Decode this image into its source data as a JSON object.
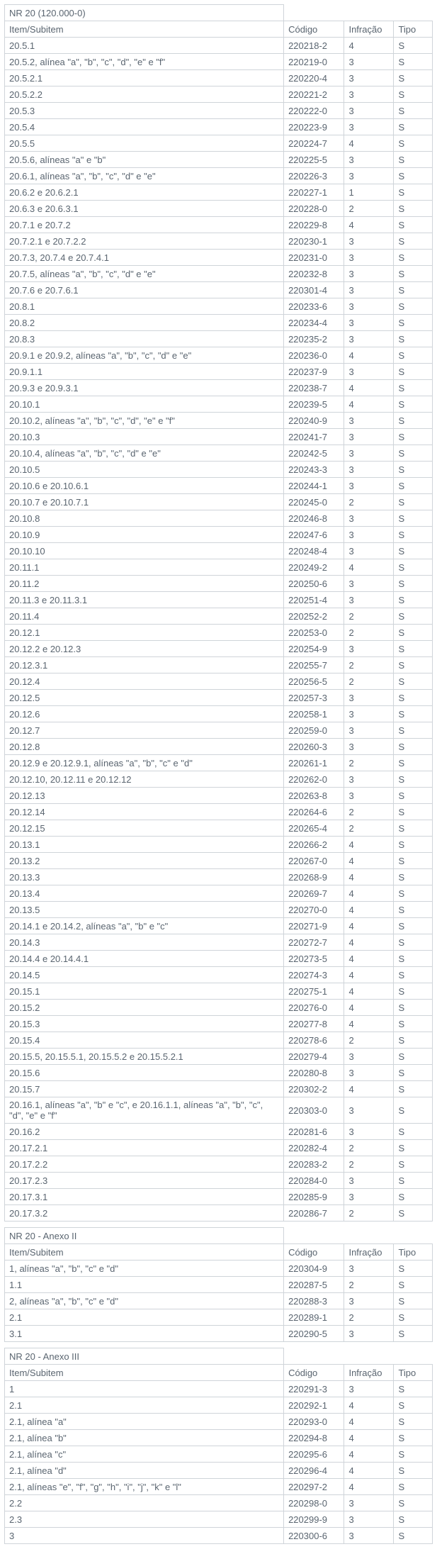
{
  "tables": [
    {
      "title": "NR 20 (120.000-0)",
      "headers": {
        "item": "Item/Subitem",
        "codigo": "Código",
        "infracao": "Infração",
        "tipo": "Tipo"
      },
      "rows": [
        {
          "item": "20.5.1",
          "codigo": "220218-2",
          "infracao": "4",
          "tipo": "S"
        },
        {
          "item": "20.5.2, alínea \"a\", \"b\", \"c\", \"d\", \"e\" e \"f\"",
          "codigo": "220219-0",
          "infracao": "3",
          "tipo": "S"
        },
        {
          "item": "20.5.2.1",
          "codigo": "220220-4",
          "infracao": "3",
          "tipo": "S"
        },
        {
          "item": "20.5.2.2",
          "codigo": "220221-2",
          "infracao": "3",
          "tipo": "S"
        },
        {
          "item": "20.5.3",
          "codigo": "220222-0",
          "infracao": "3",
          "tipo": "S"
        },
        {
          "item": "20.5.4",
          "codigo": "220223-9",
          "infracao": "3",
          "tipo": "S"
        },
        {
          "item": "20.5.5",
          "codigo": "220224-7",
          "infracao": "4",
          "tipo": "S"
        },
        {
          "item": "20.5.6, alíneas \"a\" e \"b\"",
          "codigo": "220225-5",
          "infracao": "3",
          "tipo": "S"
        },
        {
          "item": "20.6.1, alíneas \"a\", \"b\", \"c\", \"d\" e \"e\"",
          "codigo": "220226-3",
          "infracao": "3",
          "tipo": "S"
        },
        {
          "item": "20.6.2 e 20.6.2.1",
          "codigo": "220227-1",
          "infracao": "1",
          "tipo": "S"
        },
        {
          "item": "20.6.3 e 20.6.3.1",
          "codigo": "220228-0",
          "infracao": "2",
          "tipo": "S"
        },
        {
          "item": "20.7.1 e 20.7.2",
          "codigo": "220229-8",
          "infracao": "4",
          "tipo": "S"
        },
        {
          "item": "20.7.2.1 e 20.7.2.2",
          "codigo": "220230-1",
          "infracao": "3",
          "tipo": "S"
        },
        {
          "item": "20.7.3, 20.7.4 e 20.7.4.1",
          "codigo": "220231-0",
          "infracao": "3",
          "tipo": "S"
        },
        {
          "item": "20.7.5, alíneas \"a\", \"b\", \"c\", \"d\" e \"e\"",
          "codigo": "220232-8",
          "infracao": "3",
          "tipo": "S"
        },
        {
          "item": "20.7.6 e 20.7.6.1",
          "codigo": "220301-4",
          "infracao": "3",
          "tipo": "S"
        },
        {
          "item": "20.8.1",
          "codigo": "220233-6",
          "infracao": "3",
          "tipo": "S"
        },
        {
          "item": "20.8.2",
          "codigo": "220234-4",
          "infracao": "3",
          "tipo": "S"
        },
        {
          "item": "20.8.3",
          "codigo": "220235-2",
          "infracao": "3",
          "tipo": "S"
        },
        {
          "item": "20.9.1 e 20.9.2, alíneas \"a\", \"b\", \"c\", \"d\" e \"e\"",
          "codigo": "220236-0",
          "infracao": "4",
          "tipo": "S"
        },
        {
          "item": "20.9.1.1",
          "codigo": "220237-9",
          "infracao": "3",
          "tipo": "S"
        },
        {
          "item": "20.9.3 e 20.9.3.1",
          "codigo": "220238-7",
          "infracao": "4",
          "tipo": "S"
        },
        {
          "item": "20.10.1",
          "codigo": "220239-5",
          "infracao": "4",
          "tipo": "S"
        },
        {
          "item": "20.10.2, alíneas \"a\", \"b\", \"c\", \"d\", \"e\" e \"f\"",
          "codigo": "220240-9",
          "infracao": "3",
          "tipo": "S"
        },
        {
          "item": "20.10.3",
          "codigo": "220241-7",
          "infracao": "3",
          "tipo": "S"
        },
        {
          "item": "20.10.4, alíneas \"a\", \"b\", \"c\", \"d\" e \"e\"",
          "codigo": "220242-5",
          "infracao": "3",
          "tipo": "S"
        },
        {
          "item": "20.10.5",
          "codigo": "220243-3",
          "infracao": "3",
          "tipo": "S"
        },
        {
          "item": "20.10.6 e 20.10.6.1",
          "codigo": "220244-1",
          "infracao": "3",
          "tipo": "S"
        },
        {
          "item": "20.10.7 e 20.10.7.1",
          "codigo": "220245-0",
          "infracao": "2",
          "tipo": "S"
        },
        {
          "item": "20.10.8",
          "codigo": "220246-8",
          "infracao": "3",
          "tipo": "S"
        },
        {
          "item": "20.10.9",
          "codigo": "220247-6",
          "infracao": "3",
          "tipo": "S"
        },
        {
          "item": "20.10.10",
          "codigo": "220248-4",
          "infracao": "3",
          "tipo": "S"
        },
        {
          "item": "20.11.1",
          "codigo": "220249-2",
          "infracao": "4",
          "tipo": "S"
        },
        {
          "item": "20.11.2",
          "codigo": "220250-6",
          "infracao": "3",
          "tipo": "S"
        },
        {
          "item": "20.11.3 e 20.11.3.1",
          "codigo": "220251-4",
          "infracao": "3",
          "tipo": "S"
        },
        {
          "item": "20.11.4",
          "codigo": "220252-2",
          "infracao": "2",
          "tipo": "S"
        },
        {
          "item": "20.12.1",
          "codigo": "220253-0",
          "infracao": "2",
          "tipo": "S"
        },
        {
          "item": "20.12.2 e 20.12.3",
          "codigo": "220254-9",
          "infracao": "3",
          "tipo": "S"
        },
        {
          "item": "20.12.3.1",
          "codigo": "220255-7",
          "infracao": "2",
          "tipo": "S"
        },
        {
          "item": "20.12.4",
          "codigo": "220256-5",
          "infracao": "2",
          "tipo": "S"
        },
        {
          "item": "20.12.5",
          "codigo": "220257-3",
          "infracao": "3",
          "tipo": "S"
        },
        {
          "item": "20.12.6",
          "codigo": "220258-1",
          "infracao": "3",
          "tipo": "S"
        },
        {
          "item": "20.12.7",
          "codigo": "220259-0",
          "infracao": "3",
          "tipo": "S"
        },
        {
          "item": "20.12.8",
          "codigo": "220260-3",
          "infracao": "3",
          "tipo": "S"
        },
        {
          "item": "20.12.9 e 20.12.9.1, alíneas \"a\", \"b\", \"c\" e \"d\"",
          "codigo": "220261-1",
          "infracao": "2",
          "tipo": "S"
        },
        {
          "item": "20.12.10, 20.12.11 e 20.12.12",
          "codigo": "220262-0",
          "infracao": "3",
          "tipo": "S"
        },
        {
          "item": "20.12.13",
          "codigo": "220263-8",
          "infracao": "3",
          "tipo": "S"
        },
        {
          "item": "20.12.14",
          "codigo": "220264-6",
          "infracao": "2",
          "tipo": "S"
        },
        {
          "item": "20.12.15",
          "codigo": "220265-4",
          "infracao": "2",
          "tipo": "S"
        },
        {
          "item": "20.13.1",
          "codigo": "220266-2",
          "infracao": "4",
          "tipo": "S"
        },
        {
          "item": "20.13.2",
          "codigo": "220267-0",
          "infracao": "4",
          "tipo": "S"
        },
        {
          "item": "20.13.3",
          "codigo": "220268-9",
          "infracao": "4",
          "tipo": "S"
        },
        {
          "item": "20.13.4",
          "codigo": "220269-7",
          "infracao": "4",
          "tipo": "S"
        },
        {
          "item": "20.13.5",
          "codigo": "220270-0",
          "infracao": "4",
          "tipo": "S"
        },
        {
          "item": "20.14.1 e 20.14.2, alíneas \"a\", \"b\" e \"c\"",
          "codigo": "220271-9",
          "infracao": "4",
          "tipo": "S"
        },
        {
          "item": "20.14.3",
          "codigo": "220272-7",
          "infracao": "4",
          "tipo": "S"
        },
        {
          "item": "20.14.4 e 20.14.4.1",
          "codigo": "220273-5",
          "infracao": "4",
          "tipo": "S"
        },
        {
          "item": "20.14.5",
          "codigo": "220274-3",
          "infracao": "4",
          "tipo": "S"
        },
        {
          "item": "20.15.1",
          "codigo": "220275-1",
          "infracao": "4",
          "tipo": "S"
        },
        {
          "item": "20.15.2",
          "codigo": "220276-0",
          "infracao": "4",
          "tipo": "S"
        },
        {
          "item": "20.15.3",
          "codigo": "220277-8",
          "infracao": "4",
          "tipo": "S"
        },
        {
          "item": "20.15.4",
          "codigo": "220278-6",
          "infracao": "2",
          "tipo": "S"
        },
        {
          "item": "20.15.5, 20.15.5.1, 20.15.5.2 e 20.15.5.2.1",
          "codigo": "220279-4",
          "infracao": "3",
          "tipo": "S"
        },
        {
          "item": "20.15.6",
          "codigo": "220280-8",
          "infracao": "3",
          "tipo": "S"
        },
        {
          "item": "20.15.7",
          "codigo": "220302-2",
          "infracao": "4",
          "tipo": "S"
        },
        {
          "item": "20.16.1, alíneas \"a\", \"b\" e \"c\", e 20.16.1.1, alíneas \"a\", \"b\", \"c\", \"d\", \"e\" e \"f\"",
          "codigo": "220303-0",
          "infracao": "3",
          "tipo": "S"
        },
        {
          "item": "20.16.2",
          "codigo": "220281-6",
          "infracao": "3",
          "tipo": "S"
        },
        {
          "item": "20.17.2.1",
          "codigo": "220282-4",
          "infracao": "2",
          "tipo": "S"
        },
        {
          "item": "20.17.2.2",
          "codigo": "220283-2",
          "infracao": "2",
          "tipo": "S"
        },
        {
          "item": "20.17.2.3",
          "codigo": "220284-0",
          "infracao": "3",
          "tipo": "S"
        },
        {
          "item": "20.17.3.1",
          "codigo": "220285-9",
          "infracao": "3",
          "tipo": "S"
        },
        {
          "item": "20.17.3.2",
          "codigo": "220286-7",
          "infracao": "2",
          "tipo": "S"
        }
      ]
    },
    {
      "title": "NR 20 - Anexo II",
      "headers": {
        "item": "Item/Subitem",
        "codigo": "Código",
        "infracao": "Infração",
        "tipo": "Tipo"
      },
      "rows": [
        {
          "item": "1, alíneas \"a\", \"b\", \"c\" e \"d\"",
          "codigo": "220304-9",
          "infracao": "3",
          "tipo": "S"
        },
        {
          "item": "1.1",
          "codigo": "220287-5",
          "infracao": "2",
          "tipo": "S"
        },
        {
          "item": "2, alíneas \"a\", \"b\", \"c\" e \"d\"",
          "codigo": "220288-3",
          "infracao": "3",
          "tipo": "S"
        },
        {
          "item": "2.1",
          "codigo": "220289-1",
          "infracao": "2",
          "tipo": "S"
        },
        {
          "item": "3.1",
          "codigo": "220290-5",
          "infracao": "3",
          "tipo": "S"
        }
      ]
    },
    {
      "title": "NR 20 - Anexo III",
      "headers": {
        "item": "Item/Subitem",
        "codigo": "Código",
        "infracao": "Infração",
        "tipo": "Tipo"
      },
      "rows": [
        {
          "item": "1",
          "codigo": "220291-3",
          "infracao": "3",
          "tipo": "S"
        },
        {
          "item": "2.1",
          "codigo": "220292-1",
          "infracao": "4",
          "tipo": "S"
        },
        {
          "item": "2.1, alínea \"a\"",
          "codigo": "220293-0",
          "infracao": "4",
          "tipo": "S"
        },
        {
          "item": "2.1, alínea \"b\"",
          "codigo": "220294-8",
          "infracao": "4",
          "tipo": "S"
        },
        {
          "item": "2.1, alínea \"c\"",
          "codigo": "220295-6",
          "infracao": "4",
          "tipo": "S"
        },
        {
          "item": "2.1, alínea \"d\"",
          "codigo": "220296-4",
          "infracao": "4",
          "tipo": "S"
        },
        {
          "item": "2.1, alíneas \"e\", \"f\", \"g\", \"h\", \"i\", \"j\", \"k\" e \"l\"",
          "codigo": "220297-2",
          "infracao": "4",
          "tipo": "S"
        },
        {
          "item": "2.2",
          "codigo": "220298-0",
          "infracao": "3",
          "tipo": "S"
        },
        {
          "item": "2.3",
          "codigo": "220299-9",
          "infracao": "3",
          "tipo": "S"
        },
        {
          "item": "3",
          "codigo": "220300-6",
          "infracao": "3",
          "tipo": "S"
        }
      ]
    }
  ]
}
